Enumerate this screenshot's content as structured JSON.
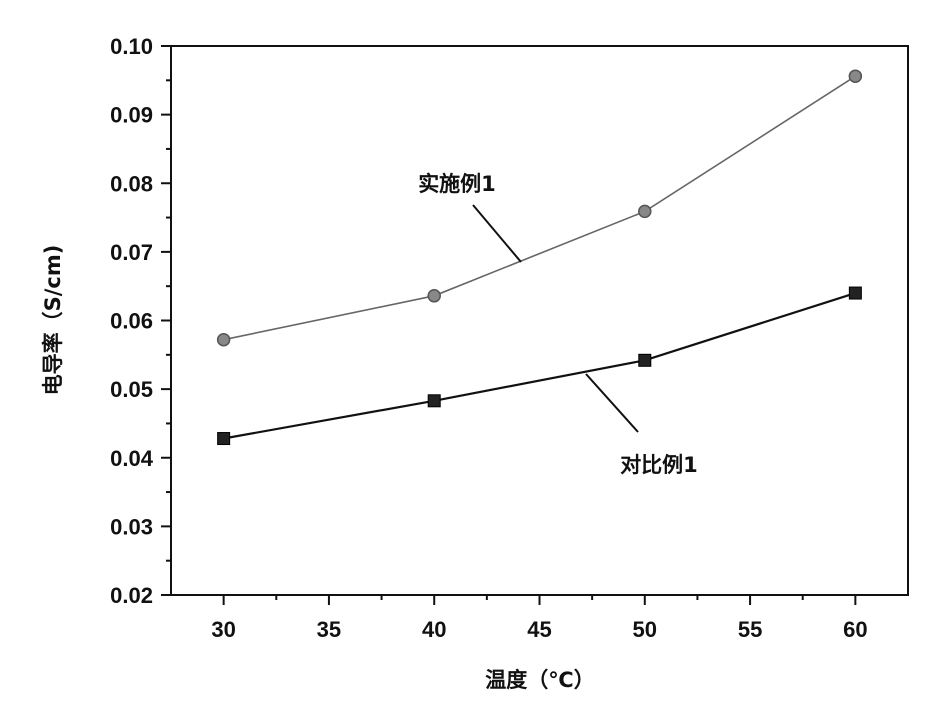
{
  "chart_data": {
    "type": "line",
    "xlabel": "温度（℃）",
    "ylabel": "电导率（S/cm)",
    "x": [
      30,
      40,
      50,
      60
    ],
    "xlim": [
      27.5,
      62.5
    ],
    "ylim": [
      0.02,
      0.1
    ],
    "xticks": [
      "30",
      "35",
      "40",
      "45",
      "50",
      "55",
      "60"
    ],
    "yticks": [
      "0.02",
      "0.03",
      "0.04",
      "0.05",
      "0.06",
      "0.07",
      "0.08",
      "0.09",
      "0.10"
    ],
    "grid": false,
    "series": [
      {
        "name": "实施例1",
        "marker": "circle",
        "color": "#888888",
        "values": [
          0.0572,
          0.0636,
          0.0759,
          0.0956
        ]
      },
      {
        "name": "对比例1",
        "marker": "square",
        "color": "#222222",
        "values": [
          0.0428,
          0.0483,
          0.0542,
          0.064
        ]
      }
    ],
    "annotations": [
      {
        "text": "实施例1",
        "series": 0
      },
      {
        "text": "对比例1",
        "series": 1
      }
    ]
  }
}
